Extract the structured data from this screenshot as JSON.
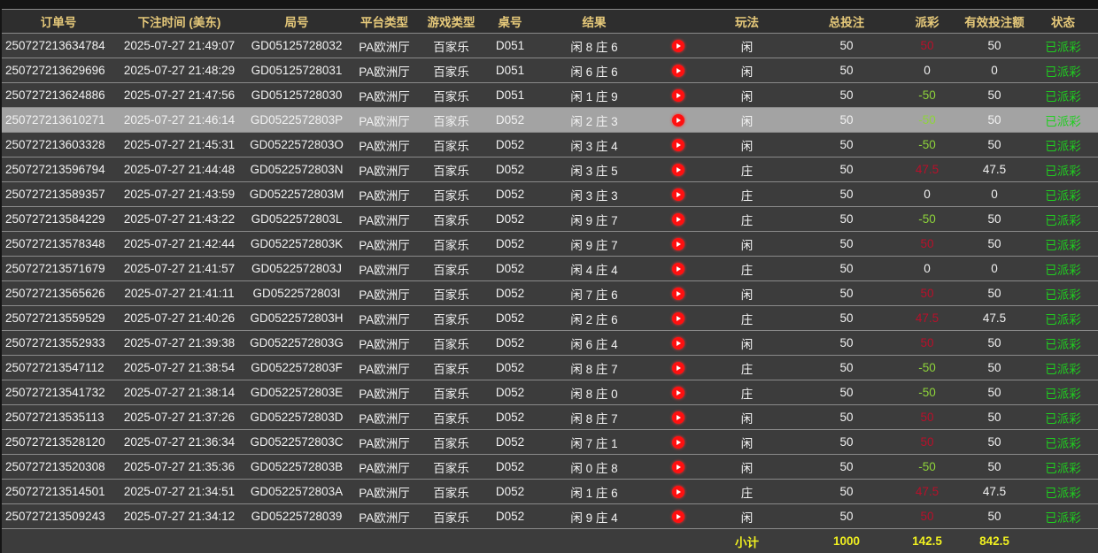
{
  "headers": [
    "订单号",
    "下注时间 (美东)",
    "局号",
    "平台类型",
    "游戏类型",
    "桌号",
    "结果",
    "",
    "玩法",
    "总投注",
    "派彩",
    "有效投注额",
    "状态",
    ""
  ],
  "colors": {
    "header_text": "#e6c97a",
    "payout_win": "#b8102a",
    "payout_loss": "#8ed43a",
    "status": "#1fcf1f",
    "subtotal": "#f0f020",
    "highlight_row": "#a3a3a3"
  },
  "play_icon": "play-circle-icon",
  "selected_row": 3,
  "rows": [
    [
      "250727213634784",
      "2025-07-27 21:49:07",
      "GD05125728032",
      "PA欧洲厅",
      "百家乐",
      "D051",
      "闲 8 庄 6",
      "闲",
      "50",
      "50",
      "50",
      "已派彩"
    ],
    [
      "250727213629696",
      "2025-07-27 21:48:29",
      "GD05125728031",
      "PA欧洲厅",
      "百家乐",
      "D051",
      "闲 6 庄 6",
      "闲",
      "50",
      "0",
      "0",
      "已派彩"
    ],
    [
      "250727213624886",
      "2025-07-27 21:47:56",
      "GD05125728030",
      "PA欧洲厅",
      "百家乐",
      "D051",
      "闲 1 庄 9",
      "闲",
      "50",
      "-50",
      "50",
      "已派彩"
    ],
    [
      "250727213610271",
      "2025-07-27 21:46:14",
      "GD0522572803P",
      "PA欧洲厅",
      "百家乐",
      "D052",
      "闲 2 庄 3",
      "闲",
      "50",
      "-50",
      "50",
      "已派彩"
    ],
    [
      "250727213603328",
      "2025-07-27 21:45:31",
      "GD0522572803O",
      "PA欧洲厅",
      "百家乐",
      "D052",
      "闲 3 庄 4",
      "闲",
      "50",
      "-50",
      "50",
      "已派彩"
    ],
    [
      "250727213596794",
      "2025-07-27 21:44:48",
      "GD0522572803N",
      "PA欧洲厅",
      "百家乐",
      "D052",
      "闲 3 庄 5",
      "庄",
      "50",
      "47.5",
      "47.5",
      "已派彩"
    ],
    [
      "250727213589357",
      "2025-07-27 21:43:59",
      "GD0522572803M",
      "PA欧洲厅",
      "百家乐",
      "D052",
      "闲 3 庄 3",
      "庄",
      "50",
      "0",
      "0",
      "已派彩"
    ],
    [
      "250727213584229",
      "2025-07-27 21:43:22",
      "GD0522572803L",
      "PA欧洲厅",
      "百家乐",
      "D052",
      "闲 9 庄 7",
      "庄",
      "50",
      "-50",
      "50",
      "已派彩"
    ],
    [
      "250727213578348",
      "2025-07-27 21:42:44",
      "GD0522572803K",
      "PA欧洲厅",
      "百家乐",
      "D052",
      "闲 9 庄 7",
      "闲",
      "50",
      "50",
      "50",
      "已派彩"
    ],
    [
      "250727213571679",
      "2025-07-27 21:41:57",
      "GD0522572803J",
      "PA欧洲厅",
      "百家乐",
      "D052",
      "闲 4 庄 4",
      "庄",
      "50",
      "0",
      "0",
      "已派彩"
    ],
    [
      "250727213565626",
      "2025-07-27 21:41:11",
      "GD0522572803I",
      "PA欧洲厅",
      "百家乐",
      "D052",
      "闲 7 庄 6",
      "闲",
      "50",
      "50",
      "50",
      "已派彩"
    ],
    [
      "250727213559529",
      "2025-07-27 21:40:26",
      "GD0522572803H",
      "PA欧洲厅",
      "百家乐",
      "D052",
      "闲 2 庄 6",
      "庄",
      "50",
      "47.5",
      "47.5",
      "已派彩"
    ],
    [
      "250727213552933",
      "2025-07-27 21:39:38",
      "GD0522572803G",
      "PA欧洲厅",
      "百家乐",
      "D052",
      "闲 6 庄 4",
      "闲",
      "50",
      "50",
      "50",
      "已派彩"
    ],
    [
      "250727213547112",
      "2025-07-27 21:38:54",
      "GD0522572803F",
      "PA欧洲厅",
      "百家乐",
      "D052",
      "闲 8 庄 7",
      "庄",
      "50",
      "-50",
      "50",
      "已派彩"
    ],
    [
      "250727213541732",
      "2025-07-27 21:38:14",
      "GD0522572803E",
      "PA欧洲厅",
      "百家乐",
      "D052",
      "闲 8 庄 0",
      "庄",
      "50",
      "-50",
      "50",
      "已派彩"
    ],
    [
      "250727213535113",
      "2025-07-27 21:37:26",
      "GD0522572803D",
      "PA欧洲厅",
      "百家乐",
      "D052",
      "闲 8 庄 7",
      "闲",
      "50",
      "50",
      "50",
      "已派彩"
    ],
    [
      "250727213528120",
      "2025-07-27 21:36:34",
      "GD0522572803C",
      "PA欧洲厅",
      "百家乐",
      "D052",
      "闲 7 庄 1",
      "闲",
      "50",
      "50",
      "50",
      "已派彩"
    ],
    [
      "250727213520308",
      "2025-07-27 21:35:36",
      "GD0522572803B",
      "PA欧洲厅",
      "百家乐",
      "D052",
      "闲 0 庄 8",
      "闲",
      "50",
      "-50",
      "50",
      "已派彩"
    ],
    [
      "250727213514501",
      "2025-07-27 21:34:51",
      "GD0522572803A",
      "PA欧洲厅",
      "百家乐",
      "D052",
      "闲 1 庄 6",
      "庄",
      "50",
      "47.5",
      "47.5",
      "已派彩"
    ],
    [
      "250727213509243",
      "2025-07-27 21:34:12",
      "GD05225728039",
      "PA欧洲厅",
      "百家乐",
      "D052",
      "闲 9 庄 4",
      "闲",
      "50",
      "50",
      "50",
      "已派彩"
    ]
  ],
  "subtotal": {
    "label": "小计",
    "total_bet": "1000",
    "payout": "142.5",
    "valid_bet": "842.5"
  }
}
